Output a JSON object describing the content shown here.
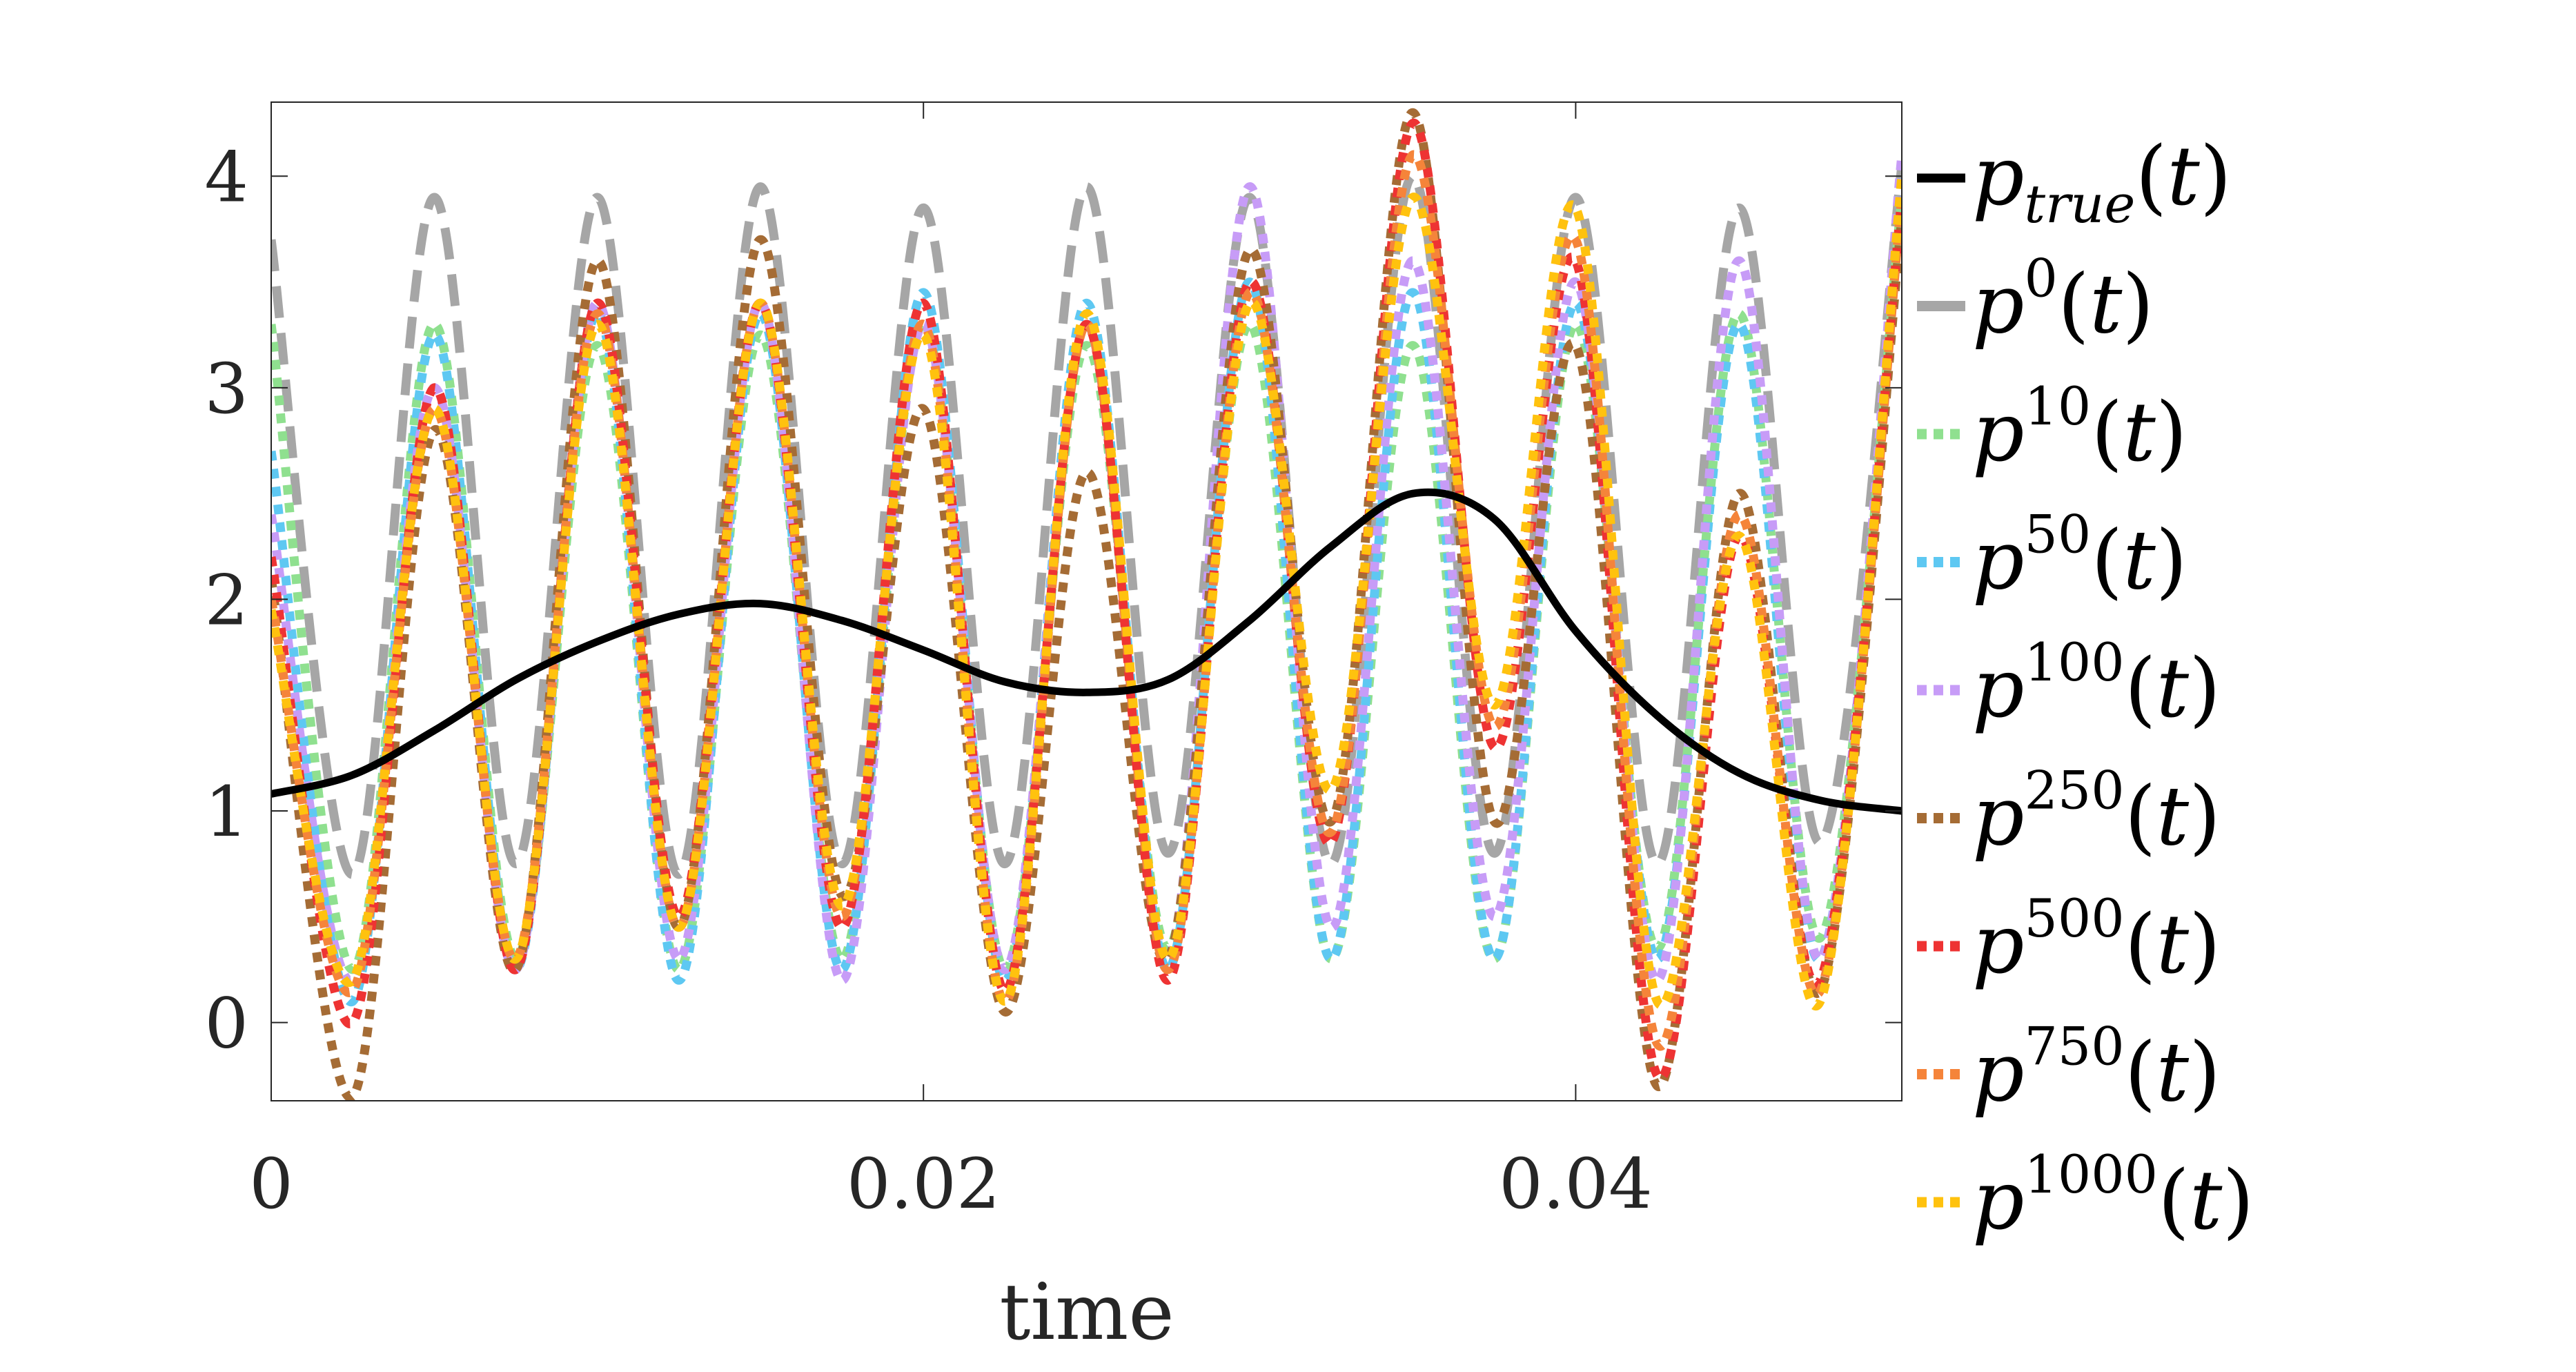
{
  "chart_data": {
    "type": "line",
    "xlabel": "time",
    "ylabel": "",
    "title": "",
    "xlim": [
      0,
      0.05
    ],
    "ylim": [
      -0.37,
      4.35
    ],
    "xticks": [
      0,
      0.02,
      0.04
    ],
    "xtick_labels": [
      "0",
      "0.02",
      "0.04"
    ],
    "yticks": [
      0,
      1,
      2,
      3,
      4
    ],
    "ytick_labels": [
      "0",
      "1",
      "2",
      "3",
      "4"
    ],
    "grid": false,
    "legend_position": "outside-right",
    "series": [
      {
        "name": "p_true(t)",
        "legend_base": "p",
        "legend_sub": "true",
        "legend_sup": "",
        "color": "#000000",
        "style": "solid",
        "width": 11,
        "points": [
          [
            0,
            1.08
          ],
          [
            0.0025,
            1.17
          ],
          [
            0.005,
            1.38
          ],
          [
            0.0075,
            1.62
          ],
          [
            0.01,
            1.8
          ],
          [
            0.0125,
            1.93
          ],
          [
            0.015,
            1.98
          ],
          [
            0.0175,
            1.9
          ],
          [
            0.02,
            1.76
          ],
          [
            0.0225,
            1.61
          ],
          [
            0.025,
            1.56
          ],
          [
            0.0275,
            1.62
          ],
          [
            0.03,
            1.9
          ],
          [
            0.0325,
            2.25
          ],
          [
            0.035,
            2.5
          ],
          [
            0.0375,
            2.38
          ],
          [
            0.04,
            1.85
          ],
          [
            0.0425,
            1.45
          ],
          [
            0.045,
            1.18
          ],
          [
            0.0475,
            1.05
          ],
          [
            0.05,
            1.0
          ]
        ]
      },
      {
        "name": "p^0(t)",
        "legend_base": "p",
        "legend_sub": "",
        "legend_sup": "0",
        "color": "#a6a6a6",
        "style": "dashed",
        "width": 13,
        "points": [
          [
            0,
            3.7
          ],
          [
            0.0025,
            0.7
          ],
          [
            0.005,
            3.9
          ],
          [
            0.0075,
            0.75
          ],
          [
            0.01,
            3.9
          ],
          [
            0.0125,
            0.7
          ],
          [
            0.015,
            3.95
          ],
          [
            0.0175,
            0.75
          ],
          [
            0.02,
            3.85
          ],
          [
            0.0225,
            0.75
          ],
          [
            0.025,
            3.95
          ],
          [
            0.0275,
            0.8
          ],
          [
            0.03,
            3.9
          ],
          [
            0.0325,
            0.75
          ],
          [
            0.035,
            4.0
          ],
          [
            0.0375,
            0.8
          ],
          [
            0.04,
            3.9
          ],
          [
            0.0425,
            0.75
          ],
          [
            0.045,
            3.85
          ],
          [
            0.0475,
            0.85
          ],
          [
            0.05,
            4.05
          ]
        ]
      },
      {
        "name": "p^10(t)",
        "legend_base": "p",
        "legend_sub": "",
        "legend_sup": "10",
        "color": "#8fe08f",
        "style": "dotted",
        "width": 13,
        "points": [
          [
            0,
            3.3
          ],
          [
            0.0025,
            0.25
          ],
          [
            0.005,
            3.3
          ],
          [
            0.0075,
            0.3
          ],
          [
            0.01,
            3.2
          ],
          [
            0.0125,
            0.25
          ],
          [
            0.015,
            3.25
          ],
          [
            0.0175,
            0.3
          ],
          [
            0.02,
            3.3
          ],
          [
            0.0225,
            0.25
          ],
          [
            0.025,
            3.2
          ],
          [
            0.0275,
            0.35
          ],
          [
            0.03,
            3.3
          ],
          [
            0.0325,
            0.3
          ],
          [
            0.035,
            3.2
          ],
          [
            0.0375,
            0.3
          ],
          [
            0.04,
            3.3
          ],
          [
            0.0425,
            0.35
          ],
          [
            0.045,
            3.35
          ],
          [
            0.0475,
            0.4
          ],
          [
            0.05,
            3.9
          ]
        ]
      },
      {
        "name": "p^50(t)",
        "legend_base": "p",
        "legend_sub": "",
        "legend_sup": "50",
        "color": "#5ec8f2",
        "style": "dotted",
        "width": 13,
        "points": [
          [
            0,
            2.7
          ],
          [
            0.0025,
            0.1
          ],
          [
            0.005,
            3.25
          ],
          [
            0.0075,
            0.25
          ],
          [
            0.01,
            3.35
          ],
          [
            0.0125,
            0.2
          ],
          [
            0.015,
            3.35
          ],
          [
            0.0175,
            0.25
          ],
          [
            0.02,
            3.45
          ],
          [
            0.0225,
            0.2
          ],
          [
            0.025,
            3.4
          ],
          [
            0.0275,
            0.25
          ],
          [
            0.03,
            3.5
          ],
          [
            0.0325,
            0.3
          ],
          [
            0.035,
            3.45
          ],
          [
            0.0375,
            0.3
          ],
          [
            0.04,
            3.4
          ],
          [
            0.0425,
            0.3
          ],
          [
            0.045,
            3.3
          ],
          [
            0.0475,
            0.3
          ],
          [
            0.05,
            4.0
          ]
        ]
      },
      {
        "name": "p^100(t)",
        "legend_base": "p",
        "legend_sub": "",
        "legend_sup": "100",
        "color": "#c79cf7",
        "style": "dotted",
        "width": 13,
        "points": [
          [
            0,
            2.4
          ],
          [
            0.0025,
            0.2
          ],
          [
            0.005,
            3.0
          ],
          [
            0.0075,
            0.25
          ],
          [
            0.01,
            3.4
          ],
          [
            0.0125,
            0.3
          ],
          [
            0.015,
            3.4
          ],
          [
            0.0175,
            0.2
          ],
          [
            0.02,
            3.3
          ],
          [
            0.0225,
            0.25
          ],
          [
            0.025,
            3.3
          ],
          [
            0.0275,
            0.3
          ],
          [
            0.03,
            3.95
          ],
          [
            0.0325,
            0.45
          ],
          [
            0.035,
            3.6
          ],
          [
            0.0375,
            0.5
          ],
          [
            0.04,
            3.5
          ],
          [
            0.0425,
            0.2
          ],
          [
            0.045,
            3.6
          ],
          [
            0.0475,
            0.3
          ],
          [
            0.05,
            4.1
          ]
        ]
      },
      {
        "name": "p^250(t)",
        "legend_base": "p",
        "legend_sub": "",
        "legend_sup": "250",
        "color": "#a56c35",
        "style": "dotted",
        "width": 13,
        "points": [
          [
            0,
            2.1
          ],
          [
            0.0025,
            -0.35
          ],
          [
            0.005,
            2.8
          ],
          [
            0.0075,
            0.25
          ],
          [
            0.01,
            3.6
          ],
          [
            0.0125,
            0.45
          ],
          [
            0.015,
            3.7
          ],
          [
            0.0175,
            0.6
          ],
          [
            0.02,
            2.9
          ],
          [
            0.0225,
            0.05
          ],
          [
            0.025,
            2.6
          ],
          [
            0.0275,
            0.3
          ],
          [
            0.03,
            3.65
          ],
          [
            0.0325,
            0.95
          ],
          [
            0.035,
            4.3
          ],
          [
            0.0375,
            0.95
          ],
          [
            0.04,
            3.2
          ],
          [
            0.0425,
            -0.3
          ],
          [
            0.045,
            2.5
          ],
          [
            0.0475,
            0.15
          ],
          [
            0.05,
            3.8
          ]
        ]
      },
      {
        "name": "p^500(t)",
        "legend_base": "p",
        "legend_sub": "",
        "legend_sup": "500",
        "color": "#ee3333",
        "style": "dotted",
        "width": 13,
        "points": [
          [
            0,
            2.2
          ],
          [
            0.0025,
            0.0
          ],
          [
            0.005,
            3.0
          ],
          [
            0.0075,
            0.25
          ],
          [
            0.01,
            3.4
          ],
          [
            0.0125,
            0.5
          ],
          [
            0.015,
            3.4
          ],
          [
            0.0175,
            0.45
          ],
          [
            0.02,
            3.4
          ],
          [
            0.0225,
            0.15
          ],
          [
            0.025,
            3.3
          ],
          [
            0.0275,
            0.2
          ],
          [
            0.03,
            3.5
          ],
          [
            0.0325,
            0.85
          ],
          [
            0.035,
            4.25
          ],
          [
            0.0375,
            1.3
          ],
          [
            0.04,
            3.6
          ],
          [
            0.0425,
            -0.25
          ],
          [
            0.045,
            2.3
          ],
          [
            0.0475,
            0.2
          ],
          [
            0.05,
            3.9
          ]
        ]
      },
      {
        "name": "p^750(t)",
        "legend_base": "p",
        "legend_sub": "",
        "legend_sup": "750",
        "color": "#f5843a",
        "style": "dotted",
        "width": 13,
        "points": [
          [
            0,
            2.0
          ],
          [
            0.0025,
            0.15
          ],
          [
            0.005,
            2.9
          ],
          [
            0.0075,
            0.3
          ],
          [
            0.01,
            3.35
          ],
          [
            0.0125,
            0.45
          ],
          [
            0.015,
            3.4
          ],
          [
            0.0175,
            0.5
          ],
          [
            0.02,
            3.3
          ],
          [
            0.0225,
            0.1
          ],
          [
            0.025,
            3.3
          ],
          [
            0.0275,
            0.25
          ],
          [
            0.03,
            3.45
          ],
          [
            0.0325,
            0.9
          ],
          [
            0.035,
            4.1
          ],
          [
            0.0375,
            1.4
          ],
          [
            0.04,
            3.7
          ],
          [
            0.0425,
            -0.1
          ],
          [
            0.045,
            2.4
          ],
          [
            0.0475,
            0.15
          ],
          [
            0.05,
            3.9
          ]
        ]
      },
      {
        "name": "p^1000(t)",
        "legend_base": "p",
        "legend_sub": "",
        "legend_sup": "1000",
        "color": "#ffc20e",
        "style": "dotted",
        "width": 13,
        "points": [
          [
            0,
            1.95
          ],
          [
            0.0025,
            0.2
          ],
          [
            0.005,
            2.9
          ],
          [
            0.0075,
            0.3
          ],
          [
            0.01,
            3.3
          ],
          [
            0.0125,
            0.45
          ],
          [
            0.015,
            3.4
          ],
          [
            0.0175,
            0.55
          ],
          [
            0.02,
            3.25
          ],
          [
            0.0225,
            0.1
          ],
          [
            0.025,
            3.35
          ],
          [
            0.0275,
            0.3
          ],
          [
            0.03,
            3.4
          ],
          [
            0.0325,
            1.1
          ],
          [
            0.035,
            3.9
          ],
          [
            0.0375,
            1.5
          ],
          [
            0.04,
            3.85
          ],
          [
            0.0425,
            0.1
          ],
          [
            0.045,
            2.3
          ],
          [
            0.0475,
            0.1
          ],
          [
            0.05,
            4.0
          ]
        ]
      }
    ]
  }
}
